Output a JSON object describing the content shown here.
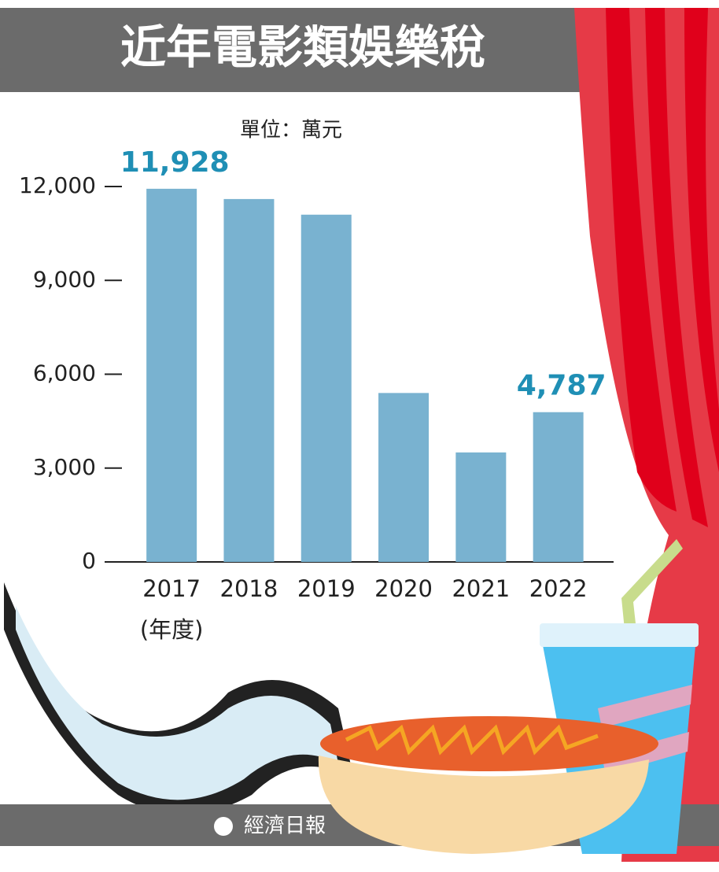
{
  "chart_data": {
    "type": "bar",
    "title": "近年電影類娛樂稅",
    "unit": "單位：萬元",
    "x_label": "(年度)",
    "source": "經濟日報",
    "categories": [
      "2017",
      "2018",
      "2019",
      "2020",
      "2021",
      "2022"
    ],
    "values": [
      11928,
      11600,
      11100,
      5400,
      3500,
      4787
    ],
    "value_labels": [
      "11,928",
      null,
      null,
      null,
      null,
      "4,787"
    ],
    "color": "#79b2d0",
    "ylim": [
      0,
      12000
    ],
    "yticks": [
      0,
      {
        "value": 3000,
        "label": "3,000"
      },
      {
        "value": 6000,
        "label": "6,000"
      },
      {
        "value": 9000,
        "label": "9,000"
      },
      {
        "value": 12000,
        "label": "12,000"
      }
    ]
  }
}
